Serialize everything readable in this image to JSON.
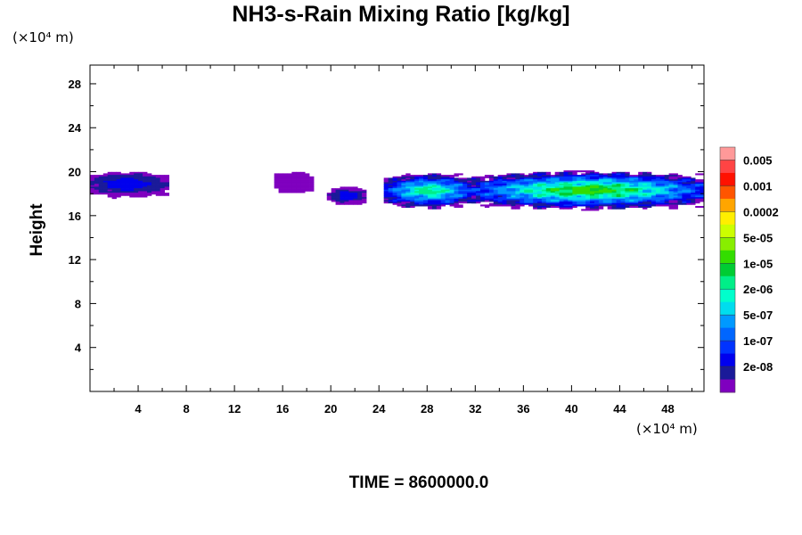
{
  "chart_data": {
    "type": "heatmap",
    "title": "NH3-s-Rain Mixing Ratio [kg/kg]",
    "xlabel": "",
    "ylabel": "Height",
    "x_unit": "(×10⁴ m)",
    "y_unit": "(×10⁴ m)",
    "xlim": [
      0,
      51
    ],
    "ylim": [
      0,
      29.7
    ],
    "x_ticks": [
      4,
      8,
      12,
      16,
      20,
      24,
      28,
      32,
      36,
      40,
      44,
      48
    ],
    "y_ticks": [
      4,
      8,
      12,
      16,
      20,
      24,
      28
    ],
    "colorbar": {
      "labels": [
        "0.005",
        "0.001",
        "0.0002",
        "5e-05",
        "1e-05",
        "2e-06",
        "5e-07",
        "1e-07",
        "2e-08"
      ],
      "colors": [
        "#ff9999",
        "#ff4444",
        "#ff1100",
        "#ff5500",
        "#ffa500",
        "#ffee00",
        "#ccff00",
        "#88ee00",
        "#33dd00",
        "#00cc33",
        "#00ee88",
        "#00ffcc",
        "#00ddee",
        "#0099ff",
        "#0066ff",
        "#0033ff",
        "#0000ee",
        "#1a1a99",
        "#7f00bf"
      ]
    },
    "regions": [
      {
        "x_range": [
          0,
          6.4
        ],
        "y_range": [
          17.7,
          20.0
        ],
        "peak": "1e-07"
      },
      {
        "x_range": [
          15.4,
          18.5
        ],
        "y_range": [
          18.0,
          20.0
        ],
        "peak": "2e-08"
      },
      {
        "x_range": [
          20.0,
          22.9
        ],
        "y_range": [
          17.0,
          18.6
        ],
        "peak": "1e-07"
      },
      {
        "x_range": [
          24.4,
          31.9
        ],
        "y_range": [
          16.7,
          19.8
        ],
        "peak": "1e-05"
      },
      {
        "x_range": [
          31.9,
          51.0
        ],
        "y_range": [
          16.6,
          20.0
        ],
        "peak": "5e-05"
      }
    ]
  },
  "footer": {
    "time_label": "TIME =",
    "time_value": "8600000.0"
  }
}
